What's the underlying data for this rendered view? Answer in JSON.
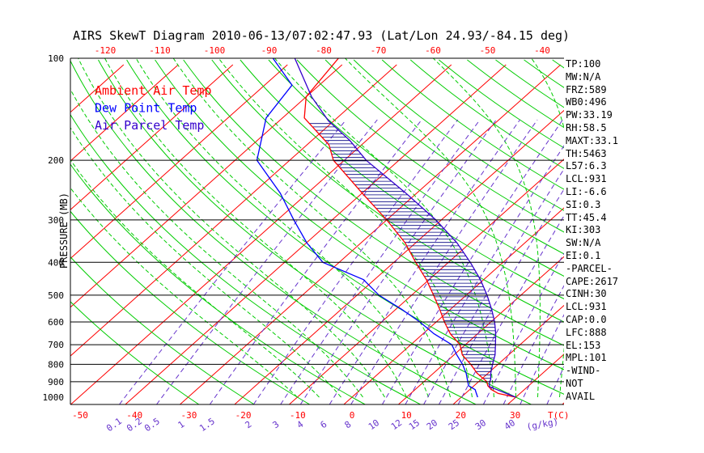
{
  "title": "AIRS SkewT Diagram 2010-06-13/07:02:47.93 (Lat/Lon 24.93/-84.15 deg)",
  "legend": [
    {
      "label": "Ambient Air Temp",
      "color": "#ff0000"
    },
    {
      "label": "Dew Point Temp",
      "color": "#0000ff"
    },
    {
      "label": "Air Parcel Temp",
      "color": "#3300cc"
    }
  ],
  "stats": [
    "TP:100",
    "MW:N/A",
    "FRZ:589",
    "WB0:496",
    "PW:33.19",
    "RH:58.5",
    "MAXT:33.1",
    "TH:5463",
    "L57:6.3",
    "LCL:931",
    "LI:-6.6",
    "SI:0.3",
    "TT:45.4",
    "KI:303",
    "SW:N/A",
    "EI:0.1",
    "-PARCEL-",
    "CAPE:2617",
    "CINH:30",
    "LCL:931",
    "CAP:0.0",
    "LFC:888",
    "EL:153",
    "MPL:101",
    "-WIND-",
    "NOT",
    "AVAIL"
  ],
  "chart_data": {
    "type": "line",
    "ylabel": "PRESSURE (MB)",
    "xlabel": "T(C)",
    "mixing_ratio_label": "(g/kg)",
    "pressure_ticks": [
      100,
      200,
      300,
      400,
      500,
      600,
      700,
      800,
      900,
      1000
    ],
    "bottom_temp_ticks": [
      -50,
      -40,
      -30,
      -20,
      -10,
      0,
      10,
      20,
      30
    ],
    "top_temp_ticks": [
      -120,
      -110,
      -100,
      -90,
      -80,
      -70,
      -60,
      -50,
      -40
    ],
    "mixing_ratio_ticks": [
      "0.1",
      "0.2",
      "0.5",
      "1",
      "1.5",
      "2",
      "3",
      "4",
      "6",
      "8",
      "10",
      "12",
      "15",
      "20",
      "25",
      "30",
      "40"
    ],
    "y_scale": "log",
    "ylim": [
      1000,
      100
    ],
    "colors": {
      "temperature": "#ff0000",
      "dewpoint": "#0000ff",
      "parcel": "#3300cc",
      "isotherm": "#ff0000",
      "dry_adiabat": "#00cc00",
      "moist_adiabat": "#00cc00",
      "mixing_ratio": "#6633cc",
      "hatch": "#000080"
    },
    "series": [
      {
        "name": "Ambient Air Temp",
        "points": [
          [
            1000,
            30
          ],
          [
            975,
            26
          ],
          [
            950,
            24
          ],
          [
            925,
            22.5
          ],
          [
            900,
            21.5
          ],
          [
            850,
            18
          ],
          [
            800,
            15
          ],
          [
            750,
            11.5
          ],
          [
            700,
            9
          ],
          [
            650,
            5
          ],
          [
            600,
            1.5
          ],
          [
            550,
            -2
          ],
          [
            500,
            -6
          ],
          [
            450,
            -10.5
          ],
          [
            400,
            -16
          ],
          [
            350,
            -22
          ],
          [
            300,
            -30
          ],
          [
            250,
            -40
          ],
          [
            200,
            -52
          ],
          [
            180,
            -56
          ],
          [
            150,
            -66
          ],
          [
            130,
            -70
          ],
          [
            100,
            -72
          ]
        ]
      },
      {
        "name": "Dew Point Temp",
        "points": [
          [
            1000,
            23
          ],
          [
            975,
            22
          ],
          [
            950,
            21
          ],
          [
            925,
            19
          ],
          [
            900,
            18
          ],
          [
            850,
            16
          ],
          [
            800,
            13.5
          ],
          [
            750,
            10.5
          ],
          [
            700,
            7.5
          ],
          [
            650,
            2
          ],
          [
            600,
            -3
          ],
          [
            550,
            -9
          ],
          [
            500,
            -16
          ],
          [
            450,
            -22
          ],
          [
            400,
            -33
          ],
          [
            350,
            -40
          ],
          [
            300,
            -47
          ],
          [
            250,
            -55
          ],
          [
            200,
            -66
          ],
          [
            150,
            -73
          ],
          [
            120,
            -75
          ],
          [
            100,
            -84
          ]
        ]
      },
      {
        "name": "Air Parcel Temp",
        "points": [
          [
            1000,
            30
          ],
          [
            975,
            27.5
          ],
          [
            950,
            25
          ],
          [
            931,
            23
          ],
          [
            900,
            22
          ],
          [
            888,
            21.8
          ],
          [
            850,
            20.5
          ],
          [
            800,
            19
          ],
          [
            750,
            17.5
          ],
          [
            700,
            15.5
          ],
          [
            650,
            13.3
          ],
          [
            600,
            10.7
          ],
          [
            550,
            7.5
          ],
          [
            500,
            3.8
          ],
          [
            450,
            -0.6
          ],
          [
            400,
            -6
          ],
          [
            350,
            -12.5
          ],
          [
            300,
            -21
          ],
          [
            250,
            -32
          ],
          [
            200,
            -46
          ],
          [
            175,
            -53
          ],
          [
            153,
            -61
          ],
          [
            130,
            -69
          ],
          [
            100,
            -80
          ]
        ]
      }
    ]
  }
}
